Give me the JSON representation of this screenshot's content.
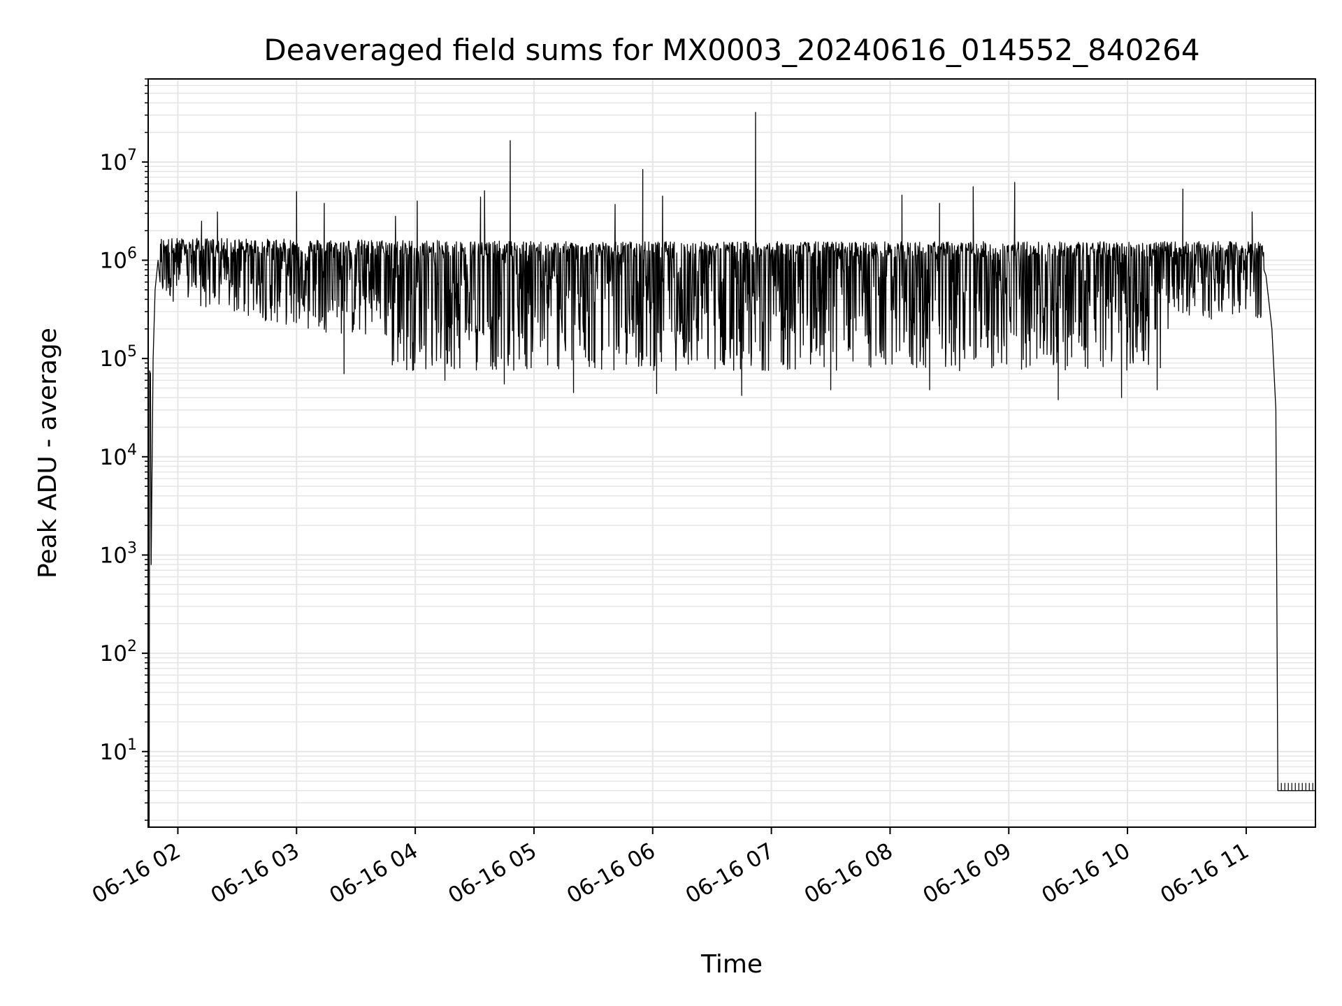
{
  "chart_data": {
    "type": "line",
    "title": "Deaveraged field sums for MX0003_20240616_014552_840264",
    "xlabel": "Time",
    "ylabel": "Peak ADU - average",
    "y_scale": "log",
    "ylim": [
      1.7,
      70000000
    ],
    "xlim": [
      "2024-06-16 01:45",
      "2024-06-16 11:35"
    ],
    "grid": true,
    "line_color": "#000000",
    "grid_color": "#e6e6e6",
    "x_ticks": [
      {
        "t": "2024-06-16 02:00",
        "label": "06-16 02"
      },
      {
        "t": "2024-06-16 03:00",
        "label": "06-16 03"
      },
      {
        "t": "2024-06-16 04:00",
        "label": "06-16 04"
      },
      {
        "t": "2024-06-16 05:00",
        "label": "06-16 05"
      },
      {
        "t": "2024-06-16 06:00",
        "label": "06-16 06"
      },
      {
        "t": "2024-06-16 07:00",
        "label": "06-16 07"
      },
      {
        "t": "2024-06-16 08:00",
        "label": "06-16 08"
      },
      {
        "t": "2024-06-16 09:00",
        "label": "06-16 09"
      },
      {
        "t": "2024-06-16 10:00",
        "label": "06-16 10"
      },
      {
        "t": "2024-06-16 11:00",
        "label": "06-16 11"
      }
    ],
    "y_ticks": [
      {
        "value": 10,
        "base": "10",
        "exp": "1"
      },
      {
        "value": 100,
        "base": "10",
        "exp": "2"
      },
      {
        "value": 1000,
        "base": "10",
        "exp": "3"
      },
      {
        "value": 10000,
        "base": "10",
        "exp": "4"
      },
      {
        "value": 100000,
        "base": "10",
        "exp": "5"
      },
      {
        "value": 1000000,
        "base": "10",
        "exp": "6"
      },
      {
        "value": 10000000,
        "base": "10",
        "exp": "7"
      }
    ],
    "series": [
      {
        "points": [
          [
            "2024-06-16 01:45:30",
            1.7
          ],
          [
            "2024-06-16 01:45:45",
            75000
          ],
          [
            "2024-06-16 01:46:10",
            70000
          ],
          [
            "2024-06-16 01:46:30",
            800
          ],
          [
            "2024-06-16 01:47:30",
            100000
          ],
          [
            "2024-06-16 01:48:30",
            500000
          ],
          [
            "2024-06-16 01:50:00",
            1000000
          ],
          [
            "2024-06-16 02:00:00",
            1500000
          ],
          [
            "2024-06-16 02:03:00",
            1100000
          ],
          [
            "2024-06-16 02:05:00",
            600000
          ],
          [
            "2024-06-16 02:15:00",
            1000000
          ],
          [
            "2024-06-16 02:30:00",
            1500000
          ],
          [
            "2024-06-16 02:45:00",
            1300000
          ],
          [
            "2024-06-16 03:00:00",
            800000
          ],
          [
            "2024-06-16 03:15:00",
            500000
          ],
          [
            "2024-06-16 03:30:00",
            400000
          ],
          [
            "2024-06-16 03:45:00",
            200000
          ],
          [
            "2024-06-16 04:00:00",
            150000
          ],
          [
            "2024-06-16 04:30:00",
            120000
          ],
          [
            "2024-06-16 05:00:00",
            110000
          ],
          [
            "2024-06-16 05:30:00",
            150000
          ],
          [
            "2024-06-16 06:00:00",
            200000
          ],
          [
            "2024-06-16 07:00:00",
            300000
          ],
          [
            "2024-06-16 08:00:00",
            400000
          ],
          [
            "2024-06-16 09:00:00",
            350000
          ],
          [
            "2024-06-16 10:00:00",
            400000
          ],
          [
            "2024-06-16 10:30:00",
            600000
          ],
          [
            "2024-06-16 11:00:00",
            1100000
          ],
          [
            "2024-06-16 11:05:00",
            1000000
          ],
          [
            "2024-06-16 11:10:00",
            700000
          ],
          [
            "2024-06-16 11:13:00",
            200000
          ],
          [
            "2024-06-16 11:15:00",
            30000
          ],
          [
            "2024-06-16 11:16:00",
            4
          ],
          [
            "2024-06-16 11:35:00",
            4
          ]
        ],
        "spikes": [
          [
            "2024-06-16 02:12:00",
            2500000
          ],
          [
            "2024-06-16 02:20:00",
            3100000
          ],
          [
            "2024-06-16 03:00:00",
            5000000
          ],
          [
            "2024-06-16 03:14:00",
            3800000
          ],
          [
            "2024-06-16 03:50:00",
            2800000
          ],
          [
            "2024-06-16 04:01:00",
            4000000
          ],
          [
            "2024-06-16 04:33:00",
            4400000
          ],
          [
            "2024-06-16 04:35:00",
            5100000
          ],
          [
            "2024-06-16 04:48:00",
            16500000
          ],
          [
            "2024-06-16 05:41:00",
            3700000
          ],
          [
            "2024-06-16 05:55:00",
            8400000
          ],
          [
            "2024-06-16 06:05:00",
            4500000
          ],
          [
            "2024-06-16 06:52:00",
            32000000
          ],
          [
            "2024-06-16 08:06:00",
            4600000
          ],
          [
            "2024-06-16 08:25:00",
            3800000
          ],
          [
            "2024-06-16 08:42:00",
            5600000
          ],
          [
            "2024-06-16 09:03:00",
            6200000
          ],
          [
            "2024-06-16 10:28:00",
            5300000
          ],
          [
            "2024-06-16 11:03:00",
            3100000
          ]
        ],
        "dips": [
          [
            "2024-06-16 03:24:00",
            70000
          ],
          [
            "2024-06-16 04:15:00",
            60000
          ],
          [
            "2024-06-16 04:45:00",
            55000
          ],
          [
            "2024-06-16 05:20:00",
            45000
          ],
          [
            "2024-06-16 06:02:00",
            44000
          ],
          [
            "2024-06-16 06:45:00",
            42000
          ],
          [
            "2024-06-16 07:30:00",
            48000
          ],
          [
            "2024-06-16 08:20:00",
            48000
          ],
          [
            "2024-06-16 09:25:00",
            38000
          ],
          [
            "2024-06-16 09:57:00",
            40000
          ],
          [
            "2024-06-16 10:15:00",
            48000
          ]
        ]
      }
    ]
  }
}
